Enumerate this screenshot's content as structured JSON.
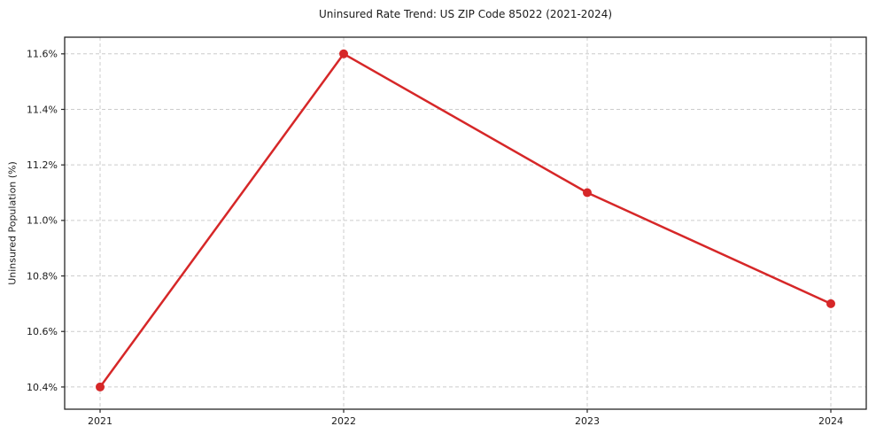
{
  "chart_data": {
    "type": "line",
    "title": "Uninsured Rate Trend: US ZIP Code 85022 (2021-2024)",
    "xlabel": "",
    "ylabel": "Uninsured Population (%)",
    "categories": [
      "2021",
      "2022",
      "2023",
      "2024"
    ],
    "series": [
      {
        "name": "Uninsured Rate",
        "values": [
          10.4,
          11.6,
          11.1,
          10.7
        ]
      }
    ],
    "unit": "%",
    "yticks": [
      10.4,
      10.6,
      10.8,
      11.0,
      11.2,
      11.4,
      11.6
    ],
    "ylim": [
      10.32,
      11.66
    ],
    "grid": true,
    "grid_style": "dashed",
    "legend": "none",
    "line_color": "#d62728",
    "marker": "circle",
    "grid_color": "#cccccc",
    "spine_color": "#262626",
    "text_color": "#1a1a1a"
  }
}
